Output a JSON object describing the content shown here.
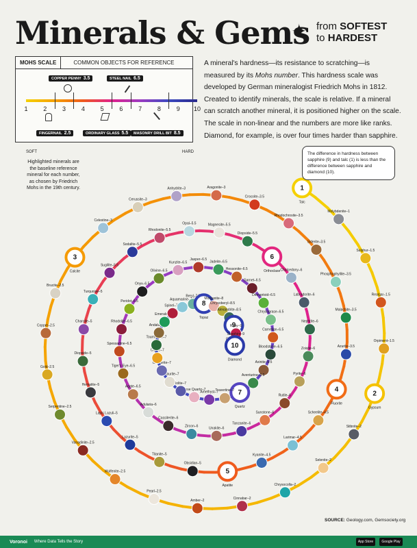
{
  "header": {
    "title": "Minerals & Gems",
    "subtitle_line1_prefix": "from ",
    "subtitle_line1_bold": "SOFTEST",
    "subtitle_line2_prefix": "to ",
    "subtitle_line2_bold": "HARDEST"
  },
  "mohs_scale": {
    "heading": "MOHS SCALE",
    "subheading": "COMMON OBJECTS FOR REFERENCE",
    "soft_label": "SOFT",
    "hard_label": "HARD",
    "numbers": [
      "1",
      "2",
      "3",
      "4",
      "5",
      "6",
      "7",
      "8",
      "9",
      "10"
    ],
    "objects": [
      {
        "name": "COPPER PENNY",
        "value": "3.5"
      },
      {
        "name": "STEEL NAIL",
        "value": "6.5"
      },
      {
        "name": "FINGERNAIL",
        "value": "2.5"
      },
      {
        "name": "ORDINARY GLASS",
        "value": "5.5"
      },
      {
        "name": "MASONRY DRILL BIT",
        "value": "8.5"
      }
    ]
  },
  "description": {
    "part1": "A mineral's hardness—its resistance to scratching—is measured by its ",
    "italic": "Mohs number",
    "part2": ". This hardness scale was developed by German mineralogist Friedrich Mohs in 1812. Created to identify minerals, the scale is relative. If a mineral can scratch another mineral, it is positioned higher on the scale. The scale in non-linear and the numbers are more like ranks. Diamond, for example, is over four times harder than sapphire."
  },
  "callout": "The difference in hardness between sapphire (9) and talc (1) is less than the difference between sapphire and diamond (10).",
  "left_note": "Highlighted minerals are the baseline reference mineral for each number, as chosen by Friedrich Mohs in the 19th century.",
  "source": {
    "label": "SOURCE:",
    "text": " Geology.com, Gemsociety.org"
  },
  "footer": {
    "brand": "Voronoi",
    "tagline": "Where Data Tells the Story",
    "app_store": "App Store",
    "google_play": "Google Play"
  },
  "chart_data": {
    "type": "spiral",
    "title": "Minerals & Gems",
    "scale_range": [
      1,
      10
    ],
    "reference_minerals": [
      {
        "rank": "1",
        "name": "Talc",
        "hardness": 1
      },
      {
        "rank": "2",
        "name": "Gypsum",
        "hardness": 2
      },
      {
        "rank": "3",
        "name": "Calcite",
        "hardness": 3
      },
      {
        "rank": "4",
        "name": "Fluorite",
        "hardness": 4
      },
      {
        "rank": "5",
        "name": "Apatite",
        "hardness": 5
      },
      {
        "rank": "6",
        "name": "Orthoclase",
        "hardness": 6
      },
      {
        "rank": "7",
        "name": "Quartz",
        "hardness": 7
      },
      {
        "rank": "8",
        "name": "Topaz",
        "hardness": 8
      },
      {
        "rank": "9",
        "name": "Corundum",
        "hardness": 9
      },
      {
        "rank": "10",
        "name": "Diamond",
        "hardness": 10
      }
    ],
    "minerals": [
      {
        "name": "Sulphur",
        "hardness": "1.5",
        "color": "#e8b81a"
      },
      {
        "name": "Realgar",
        "hardness": "1.5",
        "color": "#d2561e"
      },
      {
        "name": "Orpiment",
        "hardness": "1.5",
        "color": "#e0a020"
      },
      {
        "name": "Molybdenite",
        "hardness": "1",
        "color": "#8a8d94"
      },
      {
        "name": "Stibnite",
        "hardness": "2",
        "color": "#585c66"
      },
      {
        "name": "Selenite",
        "hardness": "2",
        "color": "#f2c88a"
      },
      {
        "name": "Chrysocolla",
        "hardness": "2",
        "color": "#1ea5a8"
      },
      {
        "name": "Cinnabar",
        "hardness": "2",
        "color": "#b0304a"
      },
      {
        "name": "Amber",
        "hardness": "2",
        "color": "#c24a18"
      },
      {
        "name": "Pearl",
        "hardness": "2.5",
        "color": "#ece6dc"
      },
      {
        "name": "Wulfenite",
        "hardness": "2.5",
        "color": "#e4862a"
      },
      {
        "name": "Vanadinite",
        "hardness": "2.5",
        "color": "#8a2a22"
      },
      {
        "name": "Serpentine",
        "hardness": "2.5",
        "color": "#6f8a2e"
      },
      {
        "name": "Gold",
        "hardness": "2.5",
        "color": "#d9a821"
      },
      {
        "name": "Copper",
        "hardness": "2.5",
        "color": "#b86a3a"
      },
      {
        "name": "Brucite",
        "hardness": "2.5",
        "color": "#d8d2c4"
      },
      {
        "name": "Celestine",
        "hardness": "3",
        "color": "#9ec3d8"
      },
      {
        "name": "Cerussite",
        "hardness": "3",
        "color": "#d8cfb8"
      },
      {
        "name": "Anhydrite",
        "hardness": "3",
        "color": "#b0a2c8"
      },
      {
        "name": "Aragonite",
        "hardness": "3",
        "color": "#d46a4a"
      },
      {
        "name": "Crocoite",
        "hardness": "3.5",
        "color": "#d23a1e"
      },
      {
        "name": "Rhodochrosite",
        "hardness": "3.5",
        "color": "#d86a7a"
      },
      {
        "name": "Siderite",
        "hardness": "3.5",
        "color": "#9a6a3a"
      },
      {
        "name": "Phosphophyllite",
        "hardness": "3.5",
        "color": "#8ad0bc"
      },
      {
        "name": "Malachite",
        "hardness": "3.5",
        "color": "#1e8a4a"
      },
      {
        "name": "Azurite",
        "hardness": "3.5",
        "color": "#2a4aa8"
      },
      {
        "name": "Scheelite",
        "hardness": "4.5",
        "color": "#d8a44a"
      },
      {
        "name": "Larimar",
        "hardness": "4.5",
        "color": "#7ac0d4"
      },
      {
        "name": "Kyanite",
        "hardness": "4.5",
        "color": "#3a6ab0"
      },
      {
        "name": "Chalcedony",
        "hardness": "6",
        "color": "#9ab2c8"
      },
      {
        "name": "Labradorite",
        "hardness": "6",
        "color": "#4a5a6a"
      },
      {
        "name": "Nephrite",
        "hardness": "6",
        "color": "#2e6a4a"
      },
      {
        "name": "Zoisite",
        "hardness": "6",
        "color": "#4a8a5a"
      },
      {
        "name": "Pyrite",
        "hardness": "6",
        "color": "#b8a05a"
      },
      {
        "name": "Rutile",
        "hardness": "6",
        "color": "#8a4a2a"
      },
      {
        "name": "Sunstone",
        "hardness": "6",
        "color": "#e07a4a"
      },
      {
        "name": "Tanzanite",
        "hardness": "6",
        "color": "#4a3aa0"
      },
      {
        "name": "Unakite",
        "hardness": "6",
        "color": "#a86a5a"
      },
      {
        "name": "Zircon",
        "hardness": "6",
        "color": "#3a8aa0"
      },
      {
        "name": "Obsidian",
        "hardness": "5",
        "color": "#1e1e22"
      },
      {
        "name": "Cassiterite",
        "hardness": "6",
        "color": "#3a2a2a"
      },
      {
        "name": "Titanite",
        "hardness": "5",
        "color": "#a89a3a"
      },
      {
        "name": "Lazurite",
        "hardness": "5",
        "color": "#1e3a9a"
      },
      {
        "name": "Lapis Lazuli",
        "hardness": "5",
        "color": "#2a4ab0"
      },
      {
        "name": "Hematite",
        "hardness": "5",
        "color": "#3a3a3e"
      },
      {
        "name": "Diopside",
        "hardness": "5",
        "color": "#3a6a3a"
      },
      {
        "name": "Charoite",
        "hardness": "5",
        "color": "#8a4aa8"
      },
      {
        "name": "Turquoise",
        "hardness": "5",
        "color": "#3ab0b8"
      },
      {
        "name": "Sugilite",
        "hardness": "5.5",
        "color": "#7a2a8a"
      },
      {
        "name": "Sodalite",
        "hardness": "5.5",
        "color": "#2a3a9a"
      },
      {
        "name": "Rhodonite",
        "hardness": "5.5",
        "color": "#c04a6a"
      },
      {
        "name": "Opal",
        "hardness": "5.5",
        "color": "#b8d8e0"
      },
      {
        "name": "Magnesite",
        "hardness": "5.5",
        "color": "#e8e4dc"
      },
      {
        "name": "Diopside",
        "hardness": "5.5",
        "color": "#2e7a4a"
      },
      {
        "name": "Adularia",
        "hardness": "6",
        "color": "#d8dcd8"
      },
      {
        "name": "Agate",
        "hardness": "6.5",
        "color": "#b87a4a"
      },
      {
        "name": "Tiger's Eye",
        "hardness": "6.5",
        "color": "#9a6a1e"
      },
      {
        "name": "Spessartine",
        "hardness": "6.5",
        "color": "#c04a1e"
      },
      {
        "name": "Rhodolite",
        "hardness": "6.5",
        "color": "#8a1e3a"
      },
      {
        "name": "Peridot",
        "hardness": "6.5",
        "color": "#8ab01e"
      },
      {
        "name": "Onyx",
        "hardness": "6.5",
        "color": "#1e1e1e"
      },
      {
        "name": "Olivine",
        "hardness": "6.5",
        "color": "#6a8a2a"
      },
      {
        "name": "Kunzite",
        "hardness": "6.5",
        "color": "#d8a0c0"
      },
      {
        "name": "Jasper",
        "hardness": "6.5",
        "color": "#b03a2a"
      },
      {
        "name": "Jadeite",
        "hardness": "6.5",
        "color": "#3a9a5a"
      },
      {
        "name": "Hessonite",
        "hardness": "6.5",
        "color": "#c0602a"
      },
      {
        "name": "Garnet",
        "hardness": "6.5",
        "color": "#6a1e2a"
      },
      {
        "name": "Demantoid",
        "hardness": "6.5",
        "color": "#5ab03a"
      },
      {
        "name": "Chrysoprase",
        "hardness": "6.5",
        "color": "#7ac08a"
      },
      {
        "name": "Carnelian",
        "hardness": "6.5",
        "color": "#d0581e"
      },
      {
        "name": "Bloodstone",
        "hardness": "6.5",
        "color": "#2a4a3a"
      },
      {
        "name": "Axinite",
        "hardness": "6.5",
        "color": "#8a5a3a"
      },
      {
        "name": "Aventurine",
        "hardness": "6.5",
        "color": "#3a8a4a"
      },
      {
        "name": "Emerald",
        "hardness": "7.5",
        "color": "#1e9a5a"
      },
      {
        "name": "Travertine",
        "hardness": "7",
        "color": "#c8a070"
      },
      {
        "name": "Amethyst",
        "hardness": "7",
        "color": "#7a3aa8"
      },
      {
        "name": "Rose Quartz",
        "hardness": "7",
        "color": "#e8b0c0"
      },
      {
        "name": "Iolite",
        "hardness": "7",
        "color": "#5a5aa8"
      },
      {
        "name": "Danburite",
        "hardness": "7",
        "color": "#e0dcd0"
      },
      {
        "name": "Cordierite",
        "hardness": "7",
        "color": "#6a6ab0"
      },
      {
        "name": "Citrine",
        "hardness": "7",
        "color": "#e8a01e"
      },
      {
        "name": "Tourmaline",
        "hardness": "7",
        "color": "#2a6a3a"
      },
      {
        "name": "Andalusite",
        "hardness": "7",
        "color": "#8a6a3a"
      },
      {
        "name": "Spinel",
        "hardness": "7.5",
        "color": "#b01e3a"
      },
      {
        "name": "Aquamarine",
        "hardness": "7.5",
        "color": "#8ac8d8"
      },
      {
        "name": "Beryl",
        "hardness": "7.5",
        "color": "#6ab0a0"
      },
      {
        "name": "Morganite",
        "hardness": "8",
        "color": "#e8b0a8"
      },
      {
        "name": "Chrysoberyl",
        "hardness": "8.5",
        "color": "#b8b03a"
      },
      {
        "name": "Alexandrite",
        "hardness": "8.5",
        "color": "#3a6a5a"
      },
      {
        "name": "Ruby",
        "hardness": "9",
        "color": "#c01e4a"
      },
      {
        "name": "Sapphire",
        "hardness": "9",
        "color": "#2a4ab0"
      }
    ]
  },
  "colors": {
    "background": "#f1f1ec",
    "spiral_start": "#f5d000",
    "spiral_end": "#2a3aa8",
    "footer": "#1a8a55"
  }
}
